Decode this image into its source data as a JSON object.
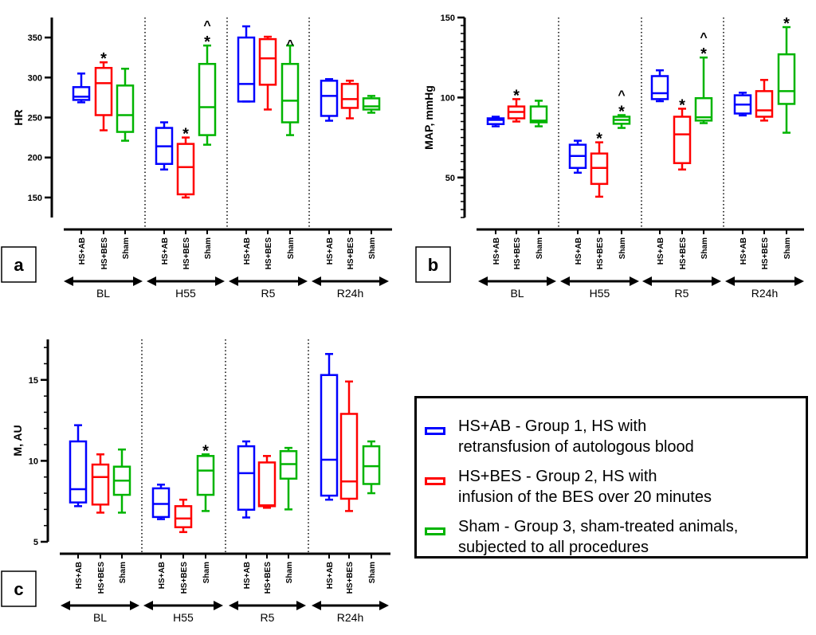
{
  "legend": [
    {
      "series": "HS+AB",
      "color": "#0000ff",
      "line1": "HS+AB - Group 1, HS with",
      "line2": "retransfusion of autologous blood"
    },
    {
      "series": "HS+BES",
      "color": "#ff0000",
      "line1": "HS+BES - Group 2, HS with",
      "line2": "infusion of the BES over 20 minutes"
    },
    {
      "series": "Sham",
      "color": "#00b400",
      "line1": "Sham - Group 3, sham-treated animals,",
      "line2": "subjected to all procedures"
    }
  ],
  "chart_data": [
    {
      "panel": "a",
      "type": "box",
      "ylabel": "HR",
      "ylim": [
        125,
        375
      ],
      "yticks": [
        150,
        200,
        250,
        300,
        350
      ],
      "categories": [
        "BL",
        "H55",
        "R5",
        "R24h"
      ],
      "series_labels": [
        "HS+AB",
        "HS+BES",
        "Sham"
      ],
      "series": [
        {
          "name": "HS+AB",
          "color": "#0000ff",
          "values": [
            [
              269,
              272,
              276,
              288,
              305
            ],
            [
              185,
              192,
              214,
              237,
              244
            ],
            [
              270,
              270,
              292,
              350,
              364
            ],
            [
              246,
              252,
              277,
              296,
              298
            ]
          ]
        },
        {
          "name": "HS+BES",
          "color": "#ff0000",
          "values": [
            [
              234,
              253,
              293,
              312,
              319
            ],
            [
              150,
              154,
              188,
              217,
              225
            ],
            [
              260,
              291,
              324,
              348,
              351
            ],
            [
              249,
              262,
              273,
              292,
              296
            ]
          ]
        },
        {
          "name": "Sham",
          "color": "#00b400",
          "values": [
            [
              221,
              232,
              253,
              290,
              311
            ],
            [
              216,
              228,
              263,
              317,
              340
            ],
            [
              228,
              244,
              271,
              317,
              340
            ],
            [
              256,
              260,
              264,
              274,
              277
            ]
          ]
        }
      ],
      "annotations": [
        {
          "category": "BL",
          "series": "HS+BES",
          "marks": [
            "*"
          ]
        },
        {
          "category": "H55",
          "series": "HS+BES",
          "marks": [
            "*"
          ]
        },
        {
          "category": "H55",
          "series": "Sham",
          "marks": [
            "*",
            "^"
          ]
        },
        {
          "category": "R5",
          "series": "Sham",
          "marks": [
            "^"
          ]
        }
      ]
    },
    {
      "panel": "b",
      "type": "box",
      "ylabel": "MAP, mmHg",
      "ylim": [
        25,
        150
      ],
      "yticks": [
        50,
        100,
        150
      ],
      "categories": [
        "BL",
        "H55",
        "R5",
        "R24h"
      ],
      "series_labels": [
        "HS+AB",
        "HS+BES",
        "Sham"
      ],
      "series": [
        {
          "name": "HS+AB",
          "color": "#0000ff",
          "values": [
            [
              82,
              83.4,
              86,
              87,
              88
            ],
            [
              53,
              56,
              63.5,
              70.5,
              73
            ],
            [
              97.7,
              99,
              102.7,
              113.4,
              117
            ],
            [
              88.8,
              90,
              95.6,
              101.4,
              103
            ]
          ]
        },
        {
          "name": "HS+BES",
          "color": "#ff0000",
          "values": [
            [
              85,
              87,
              91,
              94.4,
              99
            ],
            [
              38,
              46,
              56,
              65,
              72
            ],
            [
              55,
              59,
              77,
              88,
              93
            ],
            [
              85.6,
              88,
              92,
              104,
              111
            ]
          ]
        },
        {
          "name": "Sham",
          "color": "#00b400",
          "values": [
            [
              82,
              84.5,
              85.6,
              94.4,
              98
            ],
            [
              81,
              83.6,
              86,
              88,
              89
            ],
            [
              84,
              85.6,
              87.6,
              99.6,
              125
            ],
            [
              78,
              96,
              104,
              127,
              144
            ]
          ]
        }
      ],
      "annotations": [
        {
          "category": "BL",
          "series": "HS+BES",
          "marks": [
            "*"
          ]
        },
        {
          "category": "H55",
          "series": "HS+BES",
          "marks": [
            "*"
          ]
        },
        {
          "category": "H55",
          "series": "Sham",
          "marks": [
            "*",
            "^"
          ]
        },
        {
          "category": "R5",
          "series": "HS+BES",
          "marks": [
            "*"
          ]
        },
        {
          "category": "R5",
          "series": "Sham",
          "marks": [
            "*",
            "^"
          ]
        },
        {
          "category": "R24h",
          "series": "Sham",
          "marks": [
            "*"
          ]
        }
      ]
    },
    {
      "panel": "c",
      "type": "box",
      "ylabel": "M, AU",
      "ylim": [
        5,
        17.5
      ],
      "yticks": [
        5,
        10,
        15
      ],
      "categories": [
        "BL",
        "H55",
        "R5",
        "R24h"
      ],
      "series_labels": [
        "HS+AB",
        "HS+BES",
        "Sham"
      ],
      "series": [
        {
          "name": "HS+AB",
          "color": "#0000ff",
          "values": [
            [
              7.2,
              7.43,
              8.25,
              11.2,
              12.2
            ],
            [
              6.4,
              6.53,
              7.34,
              8.3,
              8.53
            ],
            [
              6.5,
              6.98,
              9.24,
              10.9,
              11.2
            ],
            [
              7.6,
              7.85,
              10.07,
              15.3,
              16.6
            ]
          ]
        },
        {
          "name": "HS+BES",
          "color": "#ff0000",
          "values": [
            [
              6.8,
              7.3,
              9.0,
              9.77,
              10.4
            ],
            [
              5.6,
              5.9,
              6.44,
              7.2,
              7.6
            ],
            [
              7.1,
              7.2,
              7.25,
              9.9,
              10.3
            ],
            [
              6.9,
              7.66,
              8.73,
              12.9,
              14.9
            ]
          ]
        },
        {
          "name": "Sham",
          "color": "#00b400",
          "values": [
            [
              6.8,
              7.9,
              8.78,
              9.64,
              10.7
            ],
            [
              6.9,
              7.9,
              9.4,
              10.3,
              10.4
            ],
            [
              7.0,
              8.9,
              9.8,
              10.6,
              10.8
            ],
            [
              8.0,
              8.57,
              9.67,
              10.9,
              11.2
            ]
          ]
        }
      ],
      "annotations": [
        {
          "category": "H55",
          "series": "Sham",
          "marks": [
            "*"
          ]
        }
      ]
    }
  ]
}
